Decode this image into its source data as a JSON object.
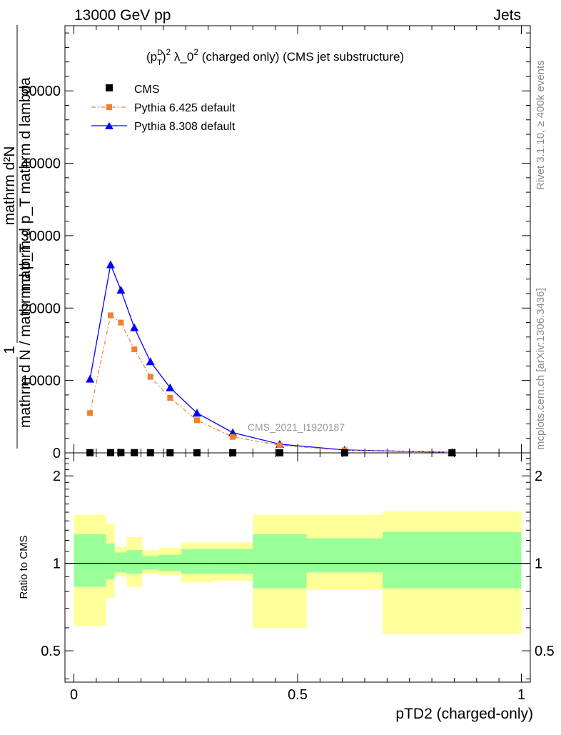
{
  "header": {
    "left": "13000 GeV pp",
    "right": "Jets"
  },
  "plot_title": {
    "prefix": "(p",
    "sup_d": "D",
    "sub_t": "T",
    "mid": ")",
    "sup2": "2",
    "lambda": " λ_0",
    "sup2b": "2",
    "rest": " (charged only) (CMS jet substructure)"
  },
  "side_labels": {
    "rivet": "Rivet 3.1.10, ≥ 400k events",
    "mcplots": "mcplots.cern.ch [arXiv:1306.3436]"
  },
  "watermark": "CMS_2021_I1920187",
  "axes": {
    "main_ylabel_numerator": "mathrm d²N",
    "main_ylabel_frac_num": "1",
    "main_ylabel_den_text": "mathrm d p_T mathrm d lambda",
    "main_ylabel_den_line": "mathrm d N / mathrm d p_T",
    "main_ylabel_bottom": "mathrm d p_T mathrm d lambda",
    "ratio_ylabel": "Ratio to CMS",
    "xlabel": "pTD2 (charged-only)",
    "main_ytick_labels": [
      "0",
      "10000",
      "20000",
      "30000",
      "40000",
      "50000"
    ],
    "ratio_ytick_labels": [
      "0.5",
      "1",
      "2"
    ],
    "xtick_labels": [
      "0",
      "0.5",
      "1"
    ]
  },
  "legend": [
    {
      "label": "CMS",
      "color": "#000000",
      "marker": "square"
    },
    {
      "label": "Pythia 6.425 default",
      "color": "#f07f30",
      "marker": "square"
    },
    {
      "label": "Pythia 8.308 default",
      "color": "#0000ff",
      "marker": "triangle"
    }
  ],
  "chart_data": {
    "type": "line",
    "xlim": [
      -0.02,
      1.02
    ],
    "ylim": [
      0,
      59000
    ],
    "ratio_ylim": [
      0.39,
      2.4
    ],
    "ratio_log_scale": true,
    "x_edges": [
      0.0,
      0.072,
      0.091,
      0.118,
      0.153,
      0.19,
      0.24,
      0.31,
      0.4,
      0.52,
      0.69,
      1.0
    ],
    "x": [
      0.036,
      0.082,
      0.105,
      0.135,
      0.171,
      0.215,
      0.275,
      0.355,
      0.46,
      0.605,
      0.845
    ],
    "series": [
      {
        "name": "CMS",
        "color": "#000000",
        "values": [
          20,
          30,
          40,
          30,
          20,
          15,
          10,
          5,
          3,
          2,
          1
        ]
      },
      {
        "name": "Pythia 6.425 default",
        "color": "#f07f30",
        "values": [
          5500,
          19000,
          18000,
          14300,
          10500,
          7600,
          4500,
          2200,
          1050,
          350,
          60
        ]
      },
      {
        "name": "Pythia 8.308 default",
        "color": "#0000ff",
        "values": [
          10200,
          26000,
          22500,
          17300,
          12600,
          9000,
          5500,
          2800,
          1200,
          400,
          70
        ]
      }
    ],
    "ratio_bands": {
      "inner": [
        [
          0.83,
          1.26
        ],
        [
          0.88,
          1.17
        ],
        [
          0.93,
          1.09
        ],
        [
          0.92,
          1.11
        ],
        [
          0.95,
          1.06
        ],
        [
          0.94,
          1.07
        ],
        [
          0.92,
          1.12
        ],
        [
          0.92,
          1.12
        ],
        [
          0.82,
          1.26
        ],
        [
          0.93,
          1.22
        ],
        [
          0.82,
          1.28
        ]
      ],
      "outer": [
        [
          0.61,
          1.47
        ],
        [
          0.76,
          1.37
        ],
        [
          0.9,
          1.14
        ],
        [
          0.83,
          1.23
        ],
        [
          0.92,
          1.11
        ],
        [
          0.91,
          1.13
        ],
        [
          0.86,
          1.18
        ],
        [
          0.87,
          1.18
        ],
        [
          0.6,
          1.47
        ],
        [
          0.81,
          1.47
        ],
        [
          0.57,
          1.51
        ]
      ]
    },
    "ratio_line": 1
  }
}
